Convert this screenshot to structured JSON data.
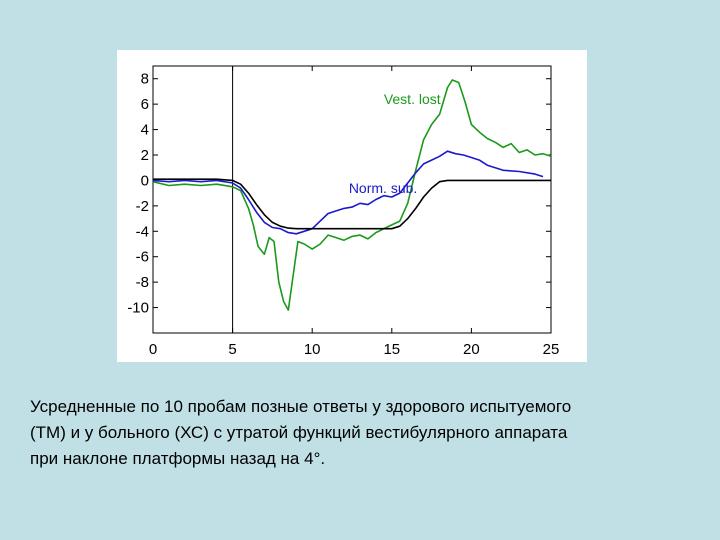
{
  "chart_data": {
    "type": "line",
    "title": "",
    "xlabel": "",
    "ylabel": "",
    "xlim": [
      0,
      25
    ],
    "ylim": [
      -12,
      9
    ],
    "x_ticks": [
      0,
      5,
      10,
      15,
      20,
      25
    ],
    "y_ticks": [
      8,
      6,
      4,
      2,
      0,
      -2,
      -4,
      -6,
      -8,
      -10
    ],
    "vertical_marker_x": 5,
    "grid": false,
    "legend": "none",
    "series": [
      {
        "name": "Vest. lost",
        "color": "#1a9a1a",
        "x": [
          0,
          1,
          2,
          3,
          4,
          5,
          5.5,
          6,
          6.3,
          6.6,
          7,
          7.3,
          7.6,
          7.9,
          8.2,
          8.5,
          8.8,
          9.1,
          9.5,
          10,
          10.5,
          11,
          11.5,
          12,
          12.5,
          13,
          13.5,
          14,
          14.5,
          15,
          15.5,
          16,
          16.5,
          17,
          17.5,
          18,
          18.5,
          18.8,
          19.2,
          19.6,
          20,
          20.5,
          21,
          21.5,
          22,
          22.5,
          23,
          23.5,
          24,
          24.5,
          25
        ],
        "y": [
          -0.1,
          -0.4,
          -0.3,
          -0.4,
          -0.3,
          -0.5,
          -0.8,
          -2.2,
          -3.5,
          -5.2,
          -5.8,
          -4.5,
          -4.8,
          -8.0,
          -9.5,
          -10.2,
          -7.5,
          -4.8,
          -5.0,
          -5.4,
          -5.0,
          -4.3,
          -4.5,
          -4.7,
          -4.4,
          -4.3,
          -4.6,
          -4.1,
          -3.8,
          -3.5,
          -3.2,
          -1.8,
          0.8,
          3.2,
          4.4,
          5.2,
          7.3,
          7.9,
          7.7,
          6.2,
          4.4,
          3.8,
          3.3,
          3.0,
          2.6,
          2.9,
          2.2,
          2.4,
          2.0,
          2.1,
          1.9
        ]
      },
      {
        "name": "Norm. sub.",
        "color": "#1a1acc",
        "x": [
          0,
          1,
          2,
          3,
          4,
          5,
          5.5,
          6,
          6.5,
          7,
          7.5,
          8,
          8.5,
          9,
          9.5,
          10,
          10.5,
          11,
          11.5,
          12,
          12.5,
          13,
          13.5,
          14,
          14.5,
          15,
          15.5,
          16,
          16.5,
          17,
          17.5,
          18,
          18.5,
          19,
          19.5,
          20,
          20.5,
          21,
          22,
          23,
          24,
          24.5
        ],
        "y": [
          0.0,
          -0.1,
          0.0,
          -0.1,
          0.0,
          -0.2,
          -0.6,
          -1.5,
          -2.5,
          -3.3,
          -3.7,
          -3.8,
          -4.1,
          -4.2,
          -4.0,
          -3.8,
          -3.2,
          -2.6,
          -2.4,
          -2.2,
          -2.1,
          -1.8,
          -1.9,
          -1.5,
          -1.2,
          -1.3,
          -1.0,
          -0.2,
          0.6,
          1.3,
          1.6,
          1.9,
          2.3,
          2.1,
          2.0,
          1.8,
          1.6,
          1.2,
          0.8,
          0.7,
          0.5,
          0.3
        ]
      },
      {
        "name": "",
        "color": "#000000",
        "x": [
          0,
          1,
          2,
          3,
          4,
          5,
          5.5,
          6,
          6.5,
          7,
          7.5,
          8,
          8.5,
          9,
          9.5,
          10,
          11,
          12,
          13,
          14,
          15,
          15.5,
          16,
          16.5,
          17,
          17.5,
          18,
          18.5,
          19,
          19.5,
          20,
          21,
          22,
          23,
          24,
          25
        ],
        "y": [
          0.1,
          0.1,
          0.1,
          0.1,
          0.1,
          0.0,
          -0.3,
          -1.0,
          -1.9,
          -2.7,
          -3.3,
          -3.6,
          -3.75,
          -3.8,
          -3.8,
          -3.8,
          -3.8,
          -3.8,
          -3.8,
          -3.8,
          -3.8,
          -3.6,
          -3.0,
          -2.2,
          -1.3,
          -0.6,
          -0.1,
          0.0,
          0.0,
          0.0,
          0.0,
          0.0,
          0.0,
          0.0,
          0.0,
          0.0
        ]
      }
    ],
    "annotations": [
      {
        "text": "Vest. lost",
        "x": 14.5,
        "y": 6,
        "color": "#1a9a1a"
      },
      {
        "text": "Norm. sub.",
        "x": 12.3,
        "y": -1,
        "color": "#1a1acc"
      }
    ]
  },
  "caption": {
    "lines": [
      "Усредненные по 10 пробам позные ответы у здорового испытуемого",
      "(ТМ) и у больного (ХС) с утратой функций вестибулярного аппарата",
      "при наклоне платформы назад на 4°."
    ]
  }
}
